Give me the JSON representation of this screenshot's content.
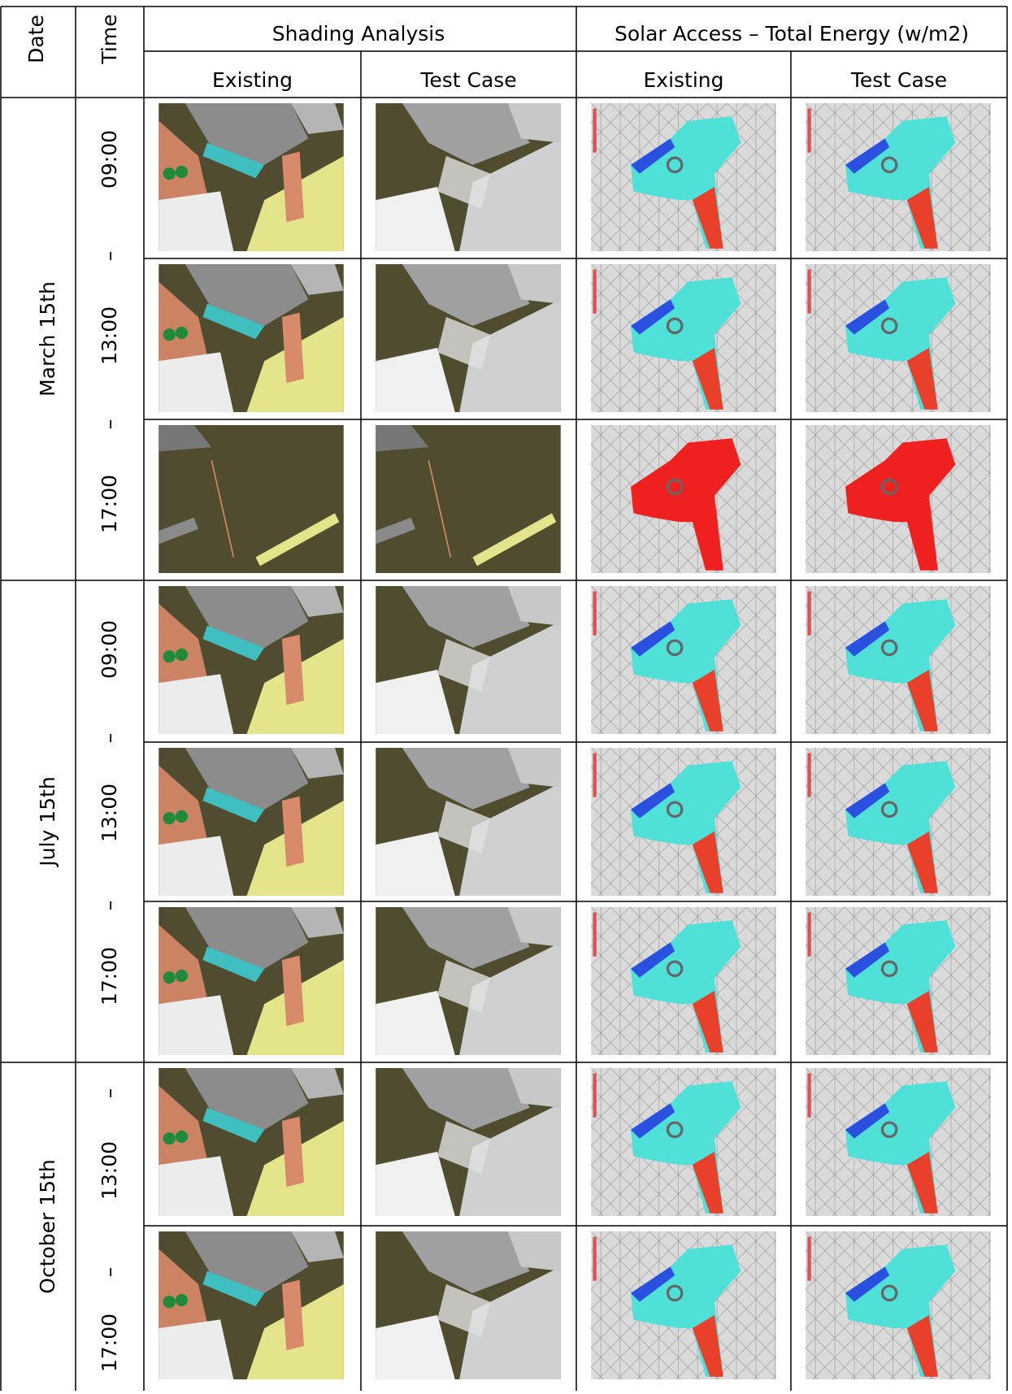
{
  "header": {
    "date": "Date",
    "time": "Time",
    "groups": [
      "Shading Analysis",
      "Solar Access – Total Energy (w/m2)"
    ],
    "columns": [
      "Existing",
      "Test Case",
      "Existing",
      "Test Case"
    ]
  },
  "dates": [
    {
      "label": "March 15th",
      "times": [
        "09:00",
        "–",
        "13:00",
        "–",
        "17:00"
      ]
    },
    {
      "label": "July 15th",
      "times": [
        "09:00",
        "–",
        "13:00",
        "–",
        "17:00"
      ]
    },
    {
      "label": "October 15th",
      "times": [
        "–",
        "13:00",
        "–",
        "17:00"
      ]
    }
  ]
}
